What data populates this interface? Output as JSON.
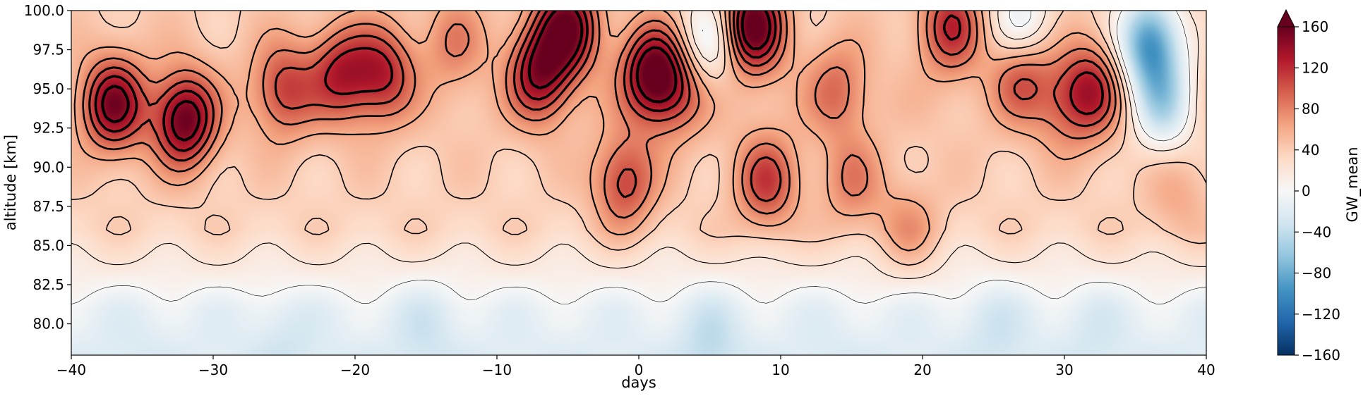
{
  "chart_data": {
    "type": "heatmap",
    "title": "",
    "xlabel": "days",
    "ylabel": "altitude [km]",
    "colorbar_label": "GW_mean",
    "colormap": "RdBu_r",
    "extend": "max",
    "xlim": [
      -40,
      40
    ],
    "ylim": [
      78,
      100
    ],
    "clim": [
      -160,
      160
    ],
    "x_ticks": [
      -40,
      -30,
      -20,
      -10,
      0,
      10,
      20,
      30,
      40
    ],
    "x_tick_labels": [
      "−40",
      "−30",
      "−20",
      "−10",
      "0",
      "10",
      "20",
      "30",
      "40"
    ],
    "y_ticks": [
      80.0,
      82.5,
      85.0,
      87.5,
      90.0,
      92.5,
      95.0,
      97.5,
      100.0
    ],
    "y_tick_labels": [
      "80.0",
      "82.5",
      "85.0",
      "87.5",
      "90.0",
      "92.5",
      "95.0",
      "97.5",
      "100.0"
    ],
    "colorbar_ticks": [
      -160,
      -120,
      -80,
      -40,
      0,
      40,
      80,
      120,
      160
    ],
    "colorbar_tick_labels": [
      "−160",
      "−120",
      "−80",
      "−40",
      "0",
      "40",
      "80",
      "120",
      "160"
    ],
    "overlay": "black contour lines of the same field",
    "grid": false,
    "features": [
      {
        "x": -37,
        "y": 94,
        "value": 150
      },
      {
        "x": -32,
        "y": 93,
        "value": 160
      },
      {
        "x": -25,
        "y": 95,
        "value": 110
      },
      {
        "x": -21,
        "y": 96,
        "value": 120
      },
      {
        "x": -18,
        "y": 96,
        "value": 120
      },
      {
        "x": -13,
        "y": 98,
        "value": 80
      },
      {
        "x": -7,
        "y": 96,
        "value": 140
      },
      {
        "x": -5,
        "y": 99,
        "value": 150
      },
      {
        "x": -1,
        "y": 89,
        "value": 110
      },
      {
        "x": 1,
        "y": 96,
        "value": 160
      },
      {
        "x": 3,
        "y": 95,
        "value": 90
      },
      {
        "x": 8,
        "y": 99,
        "value": 170
      },
      {
        "x": 9,
        "y": 89,
        "value": 110
      },
      {
        "x": 14,
        "y": 95,
        "value": 90
      },
      {
        "x": 15,
        "y": 89,
        "value": 80
      },
      {
        "x": 19,
        "y": 86,
        "value": 70
      },
      {
        "x": 22,
        "y": 99,
        "value": 120
      },
      {
        "x": 27,
        "y": 96,
        "value": 110
      },
      {
        "x": 30,
        "y": 94,
        "value": 80
      },
      {
        "x": 32,
        "y": 95,
        "value": 120
      },
      {
        "x": 38,
        "y": 88,
        "value": 60
      },
      {
        "x": 36,
        "y": 98,
        "value": -90
      },
      {
        "x": 37,
        "y": 94,
        "value": -40
      },
      {
        "x": 27,
        "y": 99,
        "value": -20
      },
      {
        "x": 5,
        "y": 98,
        "value": -20
      },
      {
        "x": -15,
        "y": 80,
        "value": -30
      },
      {
        "x": 5,
        "y": 79,
        "value": -40
      },
      {
        "x": -25,
        "y": 79,
        "value": -30
      },
      {
        "x": 25,
        "y": 80,
        "value": -30
      },
      {
        "x": 32,
        "y": 80,
        "value": -25
      },
      {
        "x": -35,
        "y": 79.5,
        "value": -20
      },
      {
        "x": 14,
        "y": 79,
        "value": -20
      }
    ],
    "base_profile": [
      {
        "y": 78,
        "value": -20
      },
      {
        "y": 81,
        "value": -10
      },
      {
        "y": 83,
        "value": 10
      },
      {
        "y": 86,
        "value": 35
      },
      {
        "y": 90,
        "value": 40
      },
      {
        "y": 94,
        "value": 45
      },
      {
        "y": 100,
        "value": 40
      }
    ]
  }
}
